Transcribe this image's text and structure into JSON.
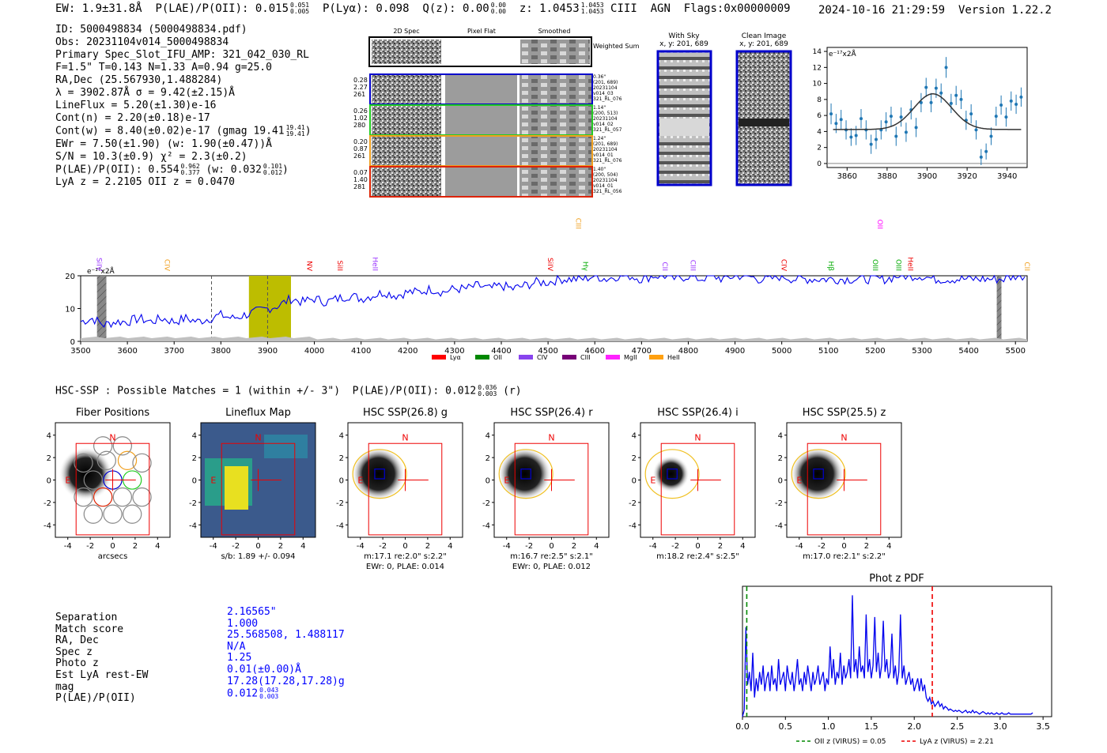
{
  "header": {
    "ew": "EW: 1.9±31.8Å",
    "plae_label": "P(LAE)/P(OII): 0.015",
    "plae_hi": "0.051",
    "plae_lo": "0.005",
    "plya": "P(Lyα): 0.098",
    "qz_label": "Q(z): 0.00",
    "qz_hi": "0.00",
    "qz_lo": "0.00",
    "z_label": "z: 1.0453",
    "z_hi": "1.0453",
    "z_lo": "1.0453",
    "tail": "CIII  AGN  Flags:0x00000009",
    "datetime": "2024-10-16 21:29:59",
    "version": "Version 1.22.2"
  },
  "info": {
    "id": "ID: 5000498834 (5000498834.pdf)",
    "obs": "Obs: 20231104v014_5000498834",
    "primary": "Primary Spec_Slot_IFU_AMP: 321_042_030_RL",
    "params": "F=1.5\"  T=0.143  N=1.33  A=0.94  g=25.0",
    "radec": "RA,Dec (25.567930,1.488284)",
    "lambda": "λ = 3902.87Å  σ = 9.42(±2.15)Å",
    "lineflux": "LineFlux = 5.20(±1.30)e-16",
    "contn": "Cont(n) = 2.20(±0.18)e-17",
    "contw": "Cont(w) = 8.40(±0.02)e-17 (gmag 19.41",
    "contw_hi": "19.41",
    "contw_lo": "19.41",
    "contw_tail": ")",
    "ewr": "EWr = 7.50(±1.90) (w: 1.90(±0.47))Å",
    "sn": "S/N = 10.3(±0.9)  χ² = 2.3(±0.2)",
    "plae": "P(LAE)/P(OII): 0.554",
    "plae_hi": "0.962",
    "plae_lo": "0.377",
    "plae_w": "(w: 0.032",
    "plae_w_hi": "0.101",
    "plae_w_lo": "0.012",
    "plae_w_tail": ")",
    "lyaz": "LyA z = 2.2105  OII z = 0.0470"
  },
  "cutouts": {
    "col_headers": [
      "2D Spec",
      "Pixel Flat",
      "Smoothed"
    ],
    "weighted_label": "Weighted Sum",
    "rows": [
      {
        "left": [
          "0.28",
          "2.27",
          "261"
        ],
        "right": [
          "0.36\"",
          "(201, 689)",
          "20231104",
          "v014_03",
          "321_RL_076"
        ],
        "color": "#0000cc"
      },
      {
        "left": [
          "0.26",
          "1.02",
          "280"
        ],
        "right": [
          "1.14\"",
          "(200, 513)",
          "20231104",
          "v014_02",
          "321_RL_057"
        ],
        "color": "#22cc22"
      },
      {
        "left": [
          "0.20",
          "0.87",
          "261"
        ],
        "right": [
          "1.24\"",
          "(201, 689)",
          "20231104",
          "v014_01",
          "321_RL_076"
        ],
        "color": "#f0a020"
      },
      {
        "left": [
          "0.07",
          "1.40",
          "281"
        ],
        "right": [
          "1.40\"",
          "(200, 504)",
          "20231104",
          "v014_01",
          "321_RL_056"
        ],
        "color": "#dd2200"
      }
    ],
    "with_sky_title": "With Sky",
    "with_sky_sub": "x, y: 201, 689",
    "clean_title": "Clean Image",
    "clean_sub": "x, y: 201, 689"
  },
  "line_fit": {
    "units": "e⁻¹⁷x2Å",
    "x_ticks": [
      "3860",
      "3880",
      "3900",
      "3920",
      "3940"
    ],
    "y_ticks": [
      "0",
      "2",
      "4",
      "6",
      "8",
      "10",
      "12",
      "14"
    ]
  },
  "spectrum": {
    "units": "e⁻¹⁷x2Å",
    "x_ticks": [
      "3500",
      "3600",
      "3700",
      "3800",
      "3900",
      "4000",
      "4100",
      "4200",
      "4300",
      "4400",
      "4500",
      "4600",
      "4700",
      "4800",
      "4900",
      "5000",
      "5100",
      "5200",
      "5300",
      "5400",
      "5500"
    ],
    "y_ticks": [
      "0",
      "10",
      "20"
    ],
    "lines": [
      {
        "name": "SiIV",
        "color": "#9933ff"
      },
      {
        "name": "CIV",
        "color": "#f0a020"
      },
      {
        "name": "NV",
        "color": "#ee0000"
      },
      {
        "name": "SiII",
        "color": "#ee0000"
      },
      {
        "name": "HeII",
        "color": "#9933ff"
      },
      {
        "name": "SiIV",
        "color": "#ee0000"
      },
      {
        "name": "CIII",
        "color": "#f0a020"
      },
      {
        "name": "Hγ",
        "color": "#00aa00"
      },
      {
        "name": "CII",
        "color": "#9933ff"
      },
      {
        "name": "CIII",
        "color": "#9933ff"
      },
      {
        "name": "CIV",
        "color": "#ee0000"
      },
      {
        "name": "Hβ",
        "color": "#00aa00"
      },
      {
        "name": "OIII",
        "color": "#00aa00"
      },
      {
        "name": "OII",
        "color": "#ff00ff"
      },
      {
        "name": "OIII",
        "color": "#00aa00"
      },
      {
        "name": "HeII",
        "color": "#ee0000"
      },
      {
        "name": "CII",
        "color": "#f0a020"
      }
    ],
    "legend": [
      {
        "name": "Lyα",
        "color": "#ff0000"
      },
      {
        "name": "OII",
        "color": "#008800"
      },
      {
        "name": "CIV",
        "color": "#8844ee"
      },
      {
        "name": "CIII",
        "color": "#770077"
      },
      {
        "name": "MgII",
        "color": "#ff22ff"
      },
      {
        "name": "HeII",
        "color": "#ffa010"
      }
    ]
  },
  "hsc": {
    "title_main": "HSC-SSP : Possible Matches = 1 (within +/- 3\")  P(LAE)/P(OII): 0.012",
    "title_hi": "0.036",
    "title_lo": "0.003",
    "title_tail": "(r)",
    "axis_ticks": [
      "-4",
      "-2",
      "0",
      "2",
      "4"
    ],
    "compass_n": "N",
    "compass_e": "E",
    "panels": [
      {
        "title": "Fiber Positions",
        "caption1": "arcsecs",
        "caption2": ""
      },
      {
        "title": "Lineflux Map",
        "caption1": "s/b: 1.89 +/- 0.094",
        "caption2": ""
      },
      {
        "title": "HSC SSP(26.8) g",
        "caption1": "m:17.1  re:2.0\"  s:2.2\"",
        "caption2": "EWr: 0, PLAE: 0.014"
      },
      {
        "title": "HSC SSP(26.4) r",
        "caption1": "m:16.7  re:2.5\"  s:2.1\"",
        "caption2": "EWr: 0, PLAE: 0.012"
      },
      {
        "title": "HSC SSP(26.4) i",
        "caption1": "m:18.2  re:2.4\"  s:2.5\"",
        "caption2": ""
      },
      {
        "title": "HSC SSP(25.5) z",
        "caption1": "m:17.0  re:2.1\"  s:2.2\"",
        "caption2": ""
      }
    ]
  },
  "match": {
    "labels": [
      "Separation",
      "Match score",
      "RA, Dec",
      "Spec z",
      "Photo z",
      "Est LyA rest-EW",
      "mag",
      "P(LAE)/P(OII)"
    ],
    "separation": "2.16565\"",
    "score": "1.000",
    "radec": "25.568508, 1.488117",
    "specz": "N/A",
    "photoz": "1.25",
    "ew": "0.01(±0.00)Å",
    "mag": "17.28(17.28,17.28)g",
    "plae": "0.012",
    "plae_hi": "0.043",
    "plae_lo": "0.003"
  },
  "chart_data": [
    {
      "type": "scatter",
      "title": "Line fit",
      "ylabel": "e⁻¹⁷x2Å",
      "xlim": [
        3850,
        3950
      ],
      "ylim": [
        -0.5,
        14.5
      ],
      "x": [
        3852,
        3854.5,
        3857,
        3859.5,
        3862,
        3864.5,
        3867,
        3869.5,
        3872,
        3874.5,
        3877,
        3879.5,
        3882,
        3884.5,
        3887,
        3889.5,
        3892,
        3894.5,
        3897,
        3899.5,
        3902,
        3904.5,
        3907,
        3909.5,
        3912,
        3914.5,
        3917,
        3919.5,
        3922,
        3924.5,
        3927,
        3929.5,
        3932,
        3934.5,
        3937,
        3939.5,
        3942,
        3944.5,
        3947
      ],
      "y": [
        6.2,
        5.0,
        5.5,
        4.2,
        3.3,
        3.5,
        5.6,
        4.2,
        2.4,
        3.0,
        4.2,
        5.2,
        5.9,
        3.4,
        5.8,
        3.9,
        6.7,
        4.5,
        7.6,
        9.5,
        7.6,
        9.4,
        8.8,
        12.0,
        7.5,
        8.5,
        8.0,
        5.4,
        6.2,
        4.2,
        0.8,
        1.5,
        3.4,
        5.9,
        7.3,
        5.8,
        7.8,
        7.4,
        8.3
      ],
      "yerr": [
        1.3,
        1.2,
        1.2,
        1.2,
        1.1,
        1.2,
        1.2,
        1.2,
        1.2,
        1.2,
        1.2,
        1.2,
        1.2,
        1.2,
        1.2,
        1.2,
        1.2,
        1.2,
        1.2,
        1.2,
        1.2,
        1.2,
        1.2,
        1.3,
        1.2,
        1.2,
        1.2,
        1.2,
        1.2,
        1.2,
        1.0,
        1.0,
        1.1,
        1.2,
        1.2,
        1.2,
        1.2,
        1.2,
        1.2
      ],
      "model": {
        "type": "gaussian",
        "center": 3902.87,
        "sigma": 9.42,
        "continuum": 4.25,
        "peak": 8.7
      }
    },
    {
      "type": "line",
      "title": "Spectrum",
      "ylabel": "e⁻¹⁷x2Å",
      "xlim": [
        3500,
        5525
      ],
      "ylim": [
        0,
        20
      ],
      "x_start": 3500,
      "x_step": 25,
      "values": [
        6,
        7,
        5,
        6,
        6,
        7,
        6,
        7,
        6,
        7,
        6,
        7,
        8,
        7,
        8,
        9,
        10,
        11,
        13,
        12,
        13,
        12,
        13,
        14,
        13,
        14,
        15,
        14,
        15,
        15,
        16,
        15,
        16,
        16,
        17,
        16,
        17,
        16,
        17,
        18,
        18,
        19,
        19,
        19,
        20,
        19,
        20,
        20,
        19,
        20,
        20,
        19,
        20,
        19,
        20,
        19,
        20,
        20,
        19,
        19,
        20,
        19,
        19,
        19,
        19,
        19,
        19,
        19,
        19,
        19,
        20,
        20,
        20,
        19,
        19,
        19,
        19,
        19,
        19,
        19,
        20,
        20
      ],
      "vlines_dashed": [
        3780,
        3900
      ],
      "shaded_ranges": [
        [
          3860,
          3950
        ]
      ],
      "masked_ranges": [
        [
          3535,
          3555
        ],
        [
          5460,
          5470
        ]
      ]
    },
    {
      "type": "line",
      "title": "Phot z PDF",
      "xlim": [
        0,
        3.6
      ],
      "x_ticks": [
        "0.0",
        "0.5",
        "1.0",
        "1.5",
        "2.0",
        "2.5",
        "3.0",
        "3.5"
      ],
      "x_start": 0.02,
      "x_step": 0.02,
      "values": [
        0.05,
        0.7,
        0.25,
        0.35,
        0.2,
        0.5,
        0.15,
        0.3,
        0.2,
        0.35,
        0.25,
        0.4,
        0.2,
        0.3,
        0.35,
        0.2,
        0.4,
        0.25,
        0.3,
        0.2,
        0.45,
        0.25,
        0.3,
        0.35,
        0.2,
        0.4,
        0.3,
        0.25,
        0.35,
        0.2,
        0.3,
        0.45,
        0.25,
        0.3,
        0.2,
        0.35,
        0.25,
        0.4,
        0.3,
        0.2,
        0.35,
        0.25,
        0.3,
        0.4,
        0.25,
        0.3,
        0.35,
        0.2,
        0.3,
        0.25,
        0.55,
        0.3,
        0.45,
        0.25,
        0.35,
        0.3,
        0.5,
        0.25,
        0.4,
        0.3,
        0.35,
        0.45,
        0.3,
        0.95,
        0.35,
        0.45,
        0.3,
        0.55,
        0.35,
        0.4,
        0.3,
        0.8,
        0.35,
        0.45,
        0.3,
        0.4,
        0.78,
        0.35,
        0.5,
        0.3,
        0.4,
        0.75,
        0.35,
        0.45,
        0.3,
        0.35,
        0.65,
        0.3,
        0.4,
        0.25,
        0.35,
        0.8,
        0.3,
        0.4,
        0.25,
        0.3,
        0.35,
        0.25,
        0.3,
        0.2,
        0.25,
        0.3,
        0.2,
        0.3,
        0.2,
        0.25,
        0.15,
        0.12,
        0.15,
        0.1,
        0.12,
        0.08,
        0.1,
        0.12,
        0.08,
        0.1,
        0.06,
        0.08,
        0.07,
        0.05,
        0.06,
        0.05,
        0.04,
        0.05,
        0.04,
        0.05,
        0.04,
        0.03,
        0.04,
        0.05,
        0.03,
        0.04,
        0.03,
        0.05,
        0.03,
        0.04,
        0.03,
        0.02,
        0.03,
        0.04,
        0.03,
        0.02,
        0.03,
        0.02,
        0.03,
        0.02,
        0.02,
        0.03,
        0.02,
        0.02,
        0.03,
        0.02,
        0.02,
        0.02,
        0.03,
        0.02,
        0.02,
        0.02,
        0.02,
        0.02,
        0.02,
        0.02,
        0.02,
        0.02,
        0.02,
        0.02,
        0.02,
        0.02,
        0.03
      ],
      "vlines": [
        {
          "x": 0.05,
          "color": "#008800",
          "label": "OII z (VIRUS) = 0.05"
        },
        {
          "x": 2.21,
          "color": "#ee0000",
          "label": "LyA z (VIRUS) = 2.21"
        }
      ]
    }
  ]
}
